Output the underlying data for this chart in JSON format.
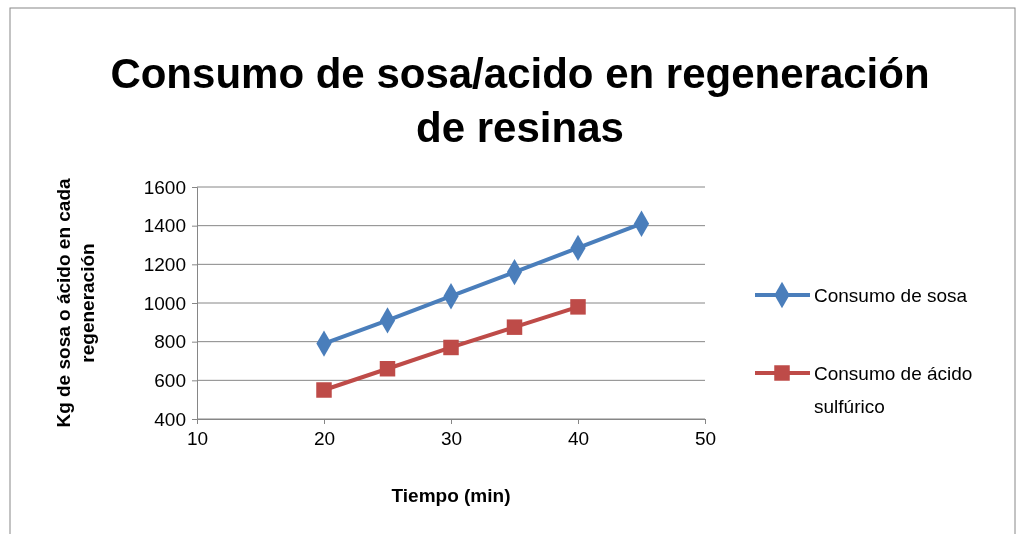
{
  "chart_data": {
    "type": "line",
    "title": "Consumo de sosa/acido en regeneración de resinas",
    "xlabel": "Tiempo (min)",
    "ylabel": "Kg de sosa o ácido en cada regeneración",
    "x": [
      20,
      25,
      30,
      35,
      40,
      45
    ],
    "series": [
      {
        "name": "Consumo de sosa",
        "color": "#4a7ebb",
        "marker": "diamond",
        "values": [
          790,
          910,
          1035,
          1160,
          1285,
          1410
        ]
      },
      {
        "name": "Consumo de ácido sulfúrico",
        "color": "#be4b48",
        "marker": "square",
        "values": [
          550,
          660,
          770,
          875,
          980,
          null
        ]
      }
    ],
    "xlim": [
      10,
      50
    ],
    "xticks": [
      10,
      20,
      30,
      40,
      50
    ],
    "ylim": [
      400,
      1600
    ],
    "yticks": [
      400,
      600,
      800,
      1000,
      1200,
      1400,
      1600
    ],
    "grid": "y",
    "legend": "right",
    "line_style": "solid"
  }
}
